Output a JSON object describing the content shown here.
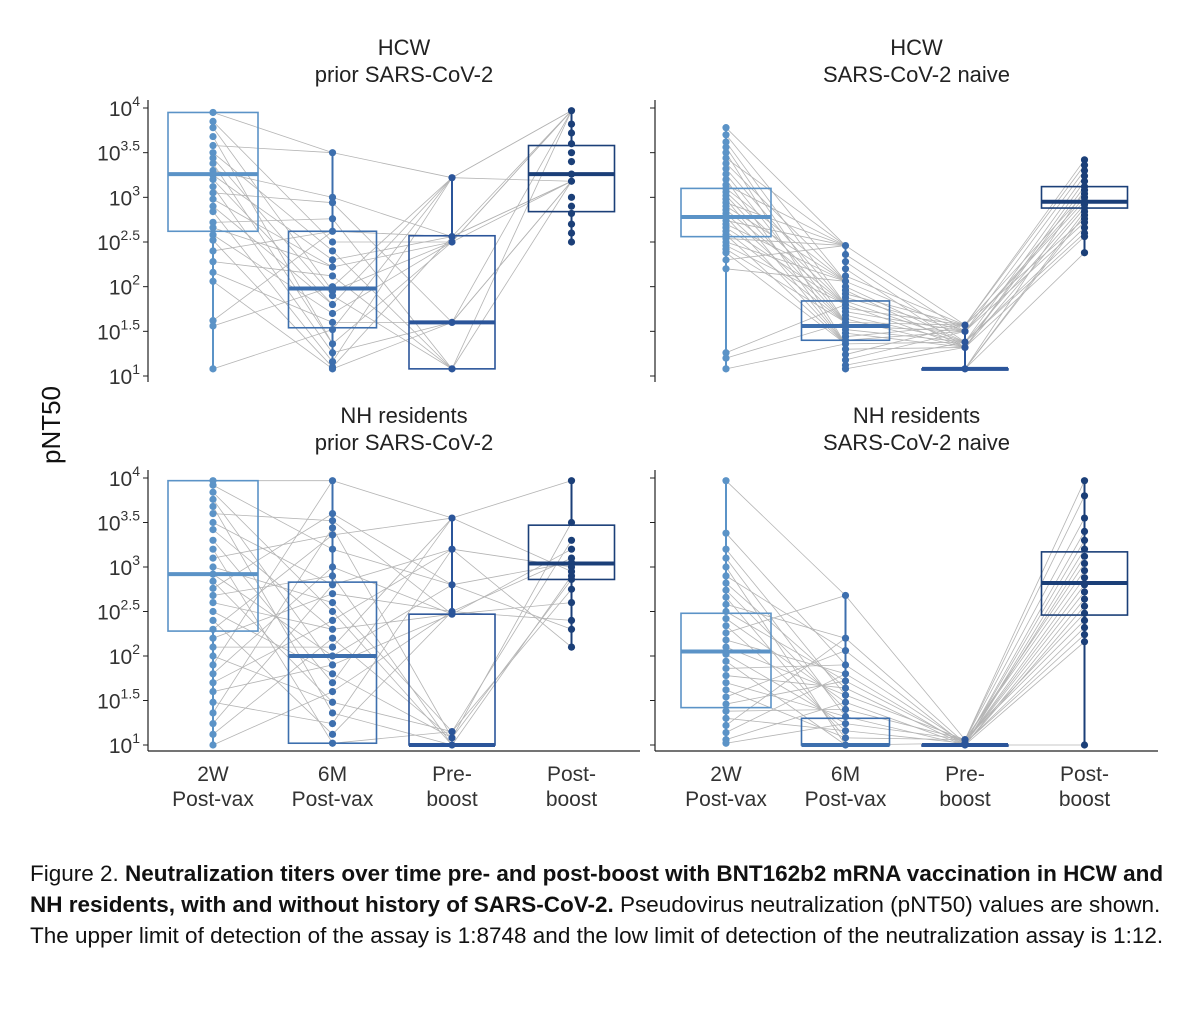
{
  "chart_data": {
    "type": "box-with-paired-points",
    "y_axis": {
      "title": "pNT50",
      "scale": "log10",
      "range": [
        1,
        4
      ],
      "ticks": [
        {
          "base": "10",
          "exp": "4",
          "value": 4
        },
        {
          "base": "10",
          "exp": "3.5",
          "value": 3.5
        },
        {
          "base": "10",
          "exp": "3",
          "value": 3
        },
        {
          "base": "10",
          "exp": "2.5",
          "value": 2.5
        },
        {
          "base": "10",
          "exp": "2",
          "value": 2
        },
        {
          "base": "10",
          "exp": "1.5",
          "value": 1.5
        },
        {
          "base": "10",
          "exp": "1",
          "value": 1
        }
      ]
    },
    "categories": [
      [
        "2W",
        "Post-vax"
      ],
      [
        "6M",
        "Post-vax"
      ],
      [
        "Pre-",
        "boost"
      ],
      [
        "Post-",
        "boost"
      ]
    ],
    "colors": [
      "#5b93c7",
      "#3d6fae",
      "#2b559a",
      "#1b3f78"
    ],
    "connector_color": "#b4b4b4",
    "panels": [
      {
        "title": [
          "HCW",
          "prior SARS-CoV-2"
        ],
        "boxes": [
          {
            "median": 3.26,
            "q1": 2.62,
            "q3": 3.95,
            "whisker_low": 1.08,
            "whisker_high": 3.97
          },
          {
            "median": 1.98,
            "q1": 1.54,
            "q3": 2.62,
            "whisker_low": 1.08,
            "whisker_high": 3.5
          },
          {
            "median": 1.6,
            "q1": 1.08,
            "q3": 2.57,
            "whisker_low": 1.08,
            "whisker_high": 3.22
          },
          {
            "median": 3.26,
            "q1": 2.84,
            "q3": 3.58,
            "whisker_low": 2.5,
            "whisker_high": 3.97
          }
        ],
        "points": [
          [
            3.95,
            3.85,
            3.78,
            3.68,
            3.58,
            3.5,
            3.44,
            3.38,
            3.3,
            3.25,
            3.2,
            3.12,
            3.05,
            2.98,
            2.9,
            2.84,
            2.72,
            2.66,
            2.58,
            2.52,
            2.4,
            2.28,
            2.16,
            2.06,
            1.62,
            1.56,
            1.08
          ],
          [
            3.5,
            3.0,
            2.94,
            2.76,
            2.62,
            2.5,
            2.4,
            2.3,
            2.22,
            2.12,
            2.0,
            1.95,
            1.9,
            1.8,
            1.7,
            1.6,
            1.52,
            1.36,
            1.26,
            1.16,
            1.1,
            1.08
          ],
          [
            3.22,
            2.56,
            2.5,
            1.6,
            1.08
          ],
          [
            3.97,
            3.82,
            3.72,
            3.6,
            3.5,
            3.4,
            3.26,
            3.18,
            3.0,
            2.9,
            2.82,
            2.7,
            2.6,
            2.5
          ]
        ]
      },
      {
        "title": [
          "HCW",
          "SARS-CoV-2 naive"
        ],
        "boxes": [
          {
            "median": 2.78,
            "q1": 2.56,
            "q3": 3.1,
            "whisker_low": 1.08,
            "whisker_high": 3.78
          },
          {
            "median": 1.56,
            "q1": 1.4,
            "q3": 1.84,
            "whisker_low": 1.08,
            "whisker_high": 2.46
          },
          {
            "median": 1.08,
            "q1": 1.08,
            "q3": 1.08,
            "whisker_low": 1.08,
            "whisker_high": 1.57
          },
          {
            "median": 2.95,
            "q1": 2.88,
            "q3": 3.12,
            "whisker_low": 2.38,
            "whisker_high": 3.42
          }
        ],
        "points": [
          [
            3.78,
            3.7,
            3.62,
            3.56,
            3.5,
            3.44,
            3.38,
            3.32,
            3.26,
            3.2,
            3.14,
            3.1,
            3.06,
            3.02,
            2.98,
            2.94,
            2.9,
            2.86,
            2.82,
            2.78,
            2.74,
            2.7,
            2.66,
            2.62,
            2.58,
            2.54,
            2.5,
            2.46,
            2.42,
            2.38,
            2.3,
            2.2,
            1.26,
            1.2,
            1.08
          ],
          [
            2.46,
            2.36,
            2.28,
            2.2,
            2.12,
            2.06,
            2.0,
            1.96,
            1.92,
            1.88,
            1.84,
            1.8,
            1.76,
            1.72,
            1.68,
            1.64,
            1.6,
            1.56,
            1.52,
            1.48,
            1.44,
            1.4,
            1.36,
            1.3,
            1.24,
            1.18,
            1.12,
            1.08
          ],
          [
            1.57,
            1.5,
            1.38,
            1.32,
            1.08
          ],
          [
            3.42,
            3.36,
            3.3,
            3.24,
            3.18,
            3.12,
            3.08,
            3.04,
            3.0,
            2.96,
            2.92,
            2.88,
            2.84,
            2.8,
            2.76,
            2.72,
            2.66,
            2.6,
            2.56,
            2.38
          ]
        ]
      },
      {
        "title": [
          "NH residents",
          "prior SARS-CoV-2"
        ],
        "boxes": [
          {
            "median": 2.92,
            "q1": 2.28,
            "q3": 3.97,
            "whisker_low": 1.0,
            "whisker_high": 3.97
          },
          {
            "median": 2.0,
            "q1": 1.02,
            "q3": 2.83,
            "whisker_low": 1.02,
            "whisker_high": 3.97
          },
          {
            "median": 1.0,
            "q1": 1.0,
            "q3": 2.47,
            "whisker_low": 1.0,
            "whisker_high": 3.55
          },
          {
            "median": 3.04,
            "q1": 2.86,
            "q3": 3.47,
            "whisker_low": 2.1,
            "whisker_high": 3.97
          }
        ],
        "points": [
          [
            3.97,
            3.92,
            3.84,
            3.76,
            3.68,
            3.6,
            3.5,
            3.42,
            3.3,
            3.2,
            3.1,
            3.0,
            2.92,
            2.84,
            2.76,
            2.68,
            2.6,
            2.5,
            2.4,
            2.3,
            2.2,
            2.1,
            2.0,
            1.9,
            1.8,
            1.7,
            1.6,
            1.48,
            1.36,
            1.24,
            1.12,
            1.0
          ],
          [
            3.97,
            3.6,
            3.52,
            3.44,
            3.36,
            3.2,
            3.0,
            2.9,
            2.8,
            2.7,
            2.6,
            2.5,
            2.4,
            2.3,
            2.2,
            2.1,
            2.0,
            1.9,
            1.8,
            1.7,
            1.6,
            1.48,
            1.36,
            1.24,
            1.12,
            1.02
          ],
          [
            3.55,
            3.2,
            2.8,
            2.5,
            2.47,
            1.15,
            1.08,
            1.0
          ],
          [
            3.97,
            3.5,
            3.3,
            3.2,
            3.1,
            3.05,
            3.0,
            2.95,
            2.9,
            2.86,
            2.75,
            2.6,
            2.4,
            2.3,
            2.1
          ]
        ]
      },
      {
        "title": [
          "NH residents",
          "SARS-CoV-2 naive"
        ],
        "boxes": [
          {
            "median": 2.05,
            "q1": 1.42,
            "q3": 2.48,
            "whisker_low": 1.02,
            "whisker_high": 3.97
          },
          {
            "median": 1.0,
            "q1": 1.0,
            "q3": 1.3,
            "whisker_low": 1.0,
            "whisker_high": 2.68
          },
          {
            "median": 1.0,
            "q1": 1.0,
            "q3": 1.0,
            "whisker_low": 1.0,
            "whisker_high": 1.06
          },
          {
            "median": 2.82,
            "q1": 2.46,
            "q3": 3.17,
            "whisker_low": 1.0,
            "whisker_high": 3.97
          }
        ],
        "points": [
          [
            3.97,
            3.38,
            3.2,
            3.1,
            3.0,
            2.9,
            2.82,
            2.74,
            2.66,
            2.58,
            2.5,
            2.42,
            2.34,
            2.26,
            2.18,
            2.1,
            2.02,
            1.94,
            1.86,
            1.78,
            1.7,
            1.62,
            1.54,
            1.46,
            1.38,
            1.3,
            1.22,
            1.14,
            1.06,
            1.02
          ],
          [
            2.68,
            2.2,
            2.06,
            1.9,
            1.8,
            1.72,
            1.64,
            1.56,
            1.48,
            1.4,
            1.32,
            1.24,
            1.16,
            1.08,
            1.0
          ],
          [
            1.06,
            1.02,
            1.0
          ],
          [
            3.97,
            3.8,
            3.55,
            3.4,
            3.3,
            3.2,
            3.12,
            3.04,
            2.96,
            2.88,
            2.8,
            2.72,
            2.64,
            2.56,
            2.48,
            2.4,
            2.32,
            2.24,
            2.16,
            1.0
          ]
        ]
      }
    ]
  },
  "caption": {
    "label": "Figure 2. ",
    "bold_title": "Neutralization titers over time pre- and post-boost with BNT162b2 mRNA vaccination in HCW and NH residents, with and without history of SARS-CoV-2.",
    "body": " Pseudovirus neutralization (pNT50) values are shown.  The upper limit of detection of the assay is 1:8748 and the low limit of detection of the neutralization assay is 1:12."
  }
}
